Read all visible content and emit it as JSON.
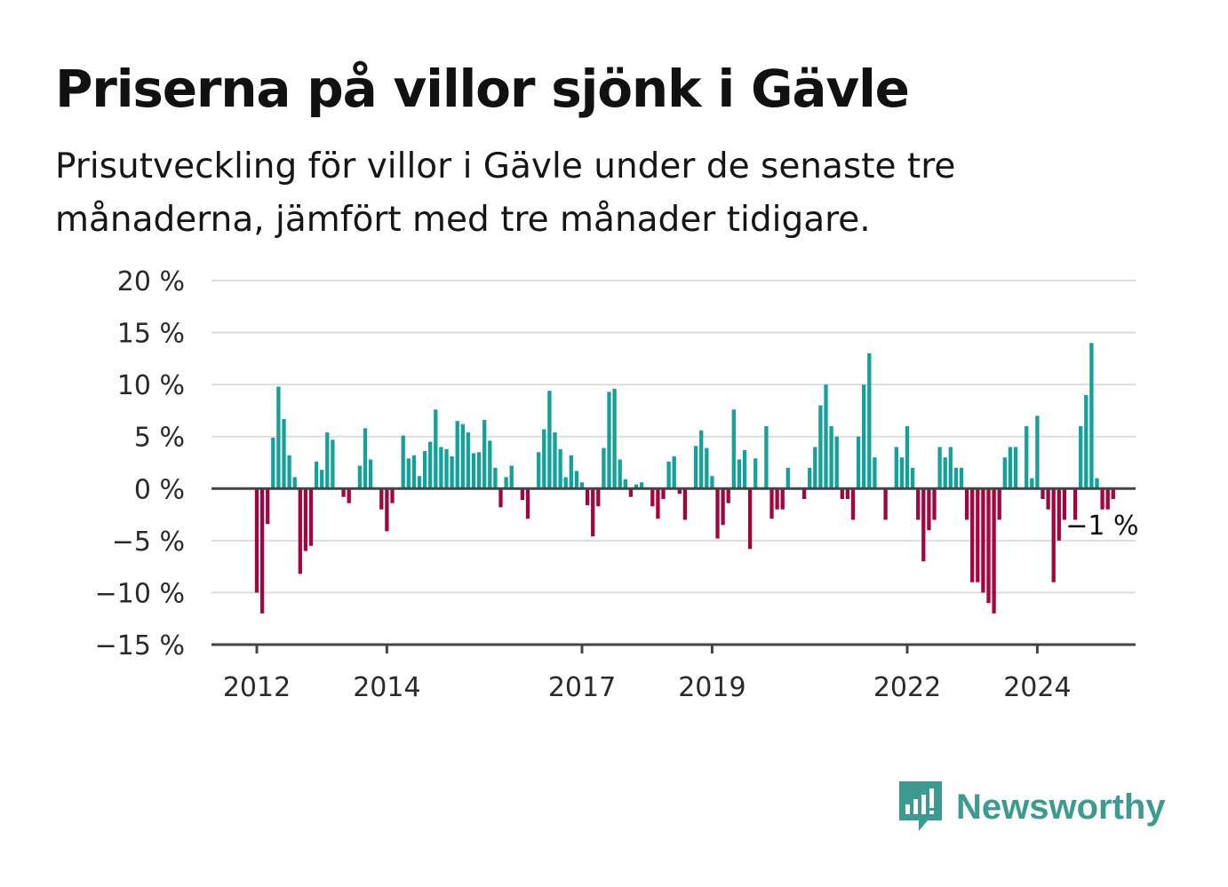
{
  "title": "Priserna på villor sjönk i Gävle",
  "subtitle": "Prisutveckling för villor i Gävle under de senaste tre månaderna, jämfört med tre månader tidigare.",
  "logo": {
    "text": "Newsworthy",
    "icon": "newsworthy-chart-bubble-icon"
  },
  "colors": {
    "positive": "#13a19b",
    "negative": "#a3063f",
    "grid": "#dddddd",
    "axis": "#444444",
    "logo": "#3d9a90"
  },
  "chart_data": {
    "type": "bar",
    "title": "Priserna på villor sjönk i Gävle",
    "xlabel": "",
    "ylabel": "",
    "ylim": [
      -15,
      20
    ],
    "yticks": [
      -15,
      -10,
      -5,
      0,
      5,
      10,
      15,
      20
    ],
    "ytick_labels": [
      "−15 %",
      "−10 %",
      "−5 %",
      "0 %",
      "5 %",
      "10 %",
      "15 %",
      "20 %"
    ],
    "xtick_labels": [
      "2012",
      "2014",
      "2017",
      "2019",
      "2022",
      "2024"
    ],
    "xtick_index": [
      0,
      24,
      60,
      84,
      120,
      144
    ],
    "start_index": -0.5,
    "end_index": 163,
    "grid": true,
    "annotation": {
      "text": "−1 %",
      "index": 154
    },
    "values": [
      -10,
      -12,
      -3.4,
      4.9,
      9.8,
      6.7,
      3.2,
      1.1,
      -8.2,
      -6,
      -5.5,
      2.6,
      1.8,
      5.4,
      4.7,
      0,
      -0.8,
      -1.4,
      0,
      2.2,
      5.8,
      2.8,
      0,
      -2,
      -4.1,
      -1.4,
      0,
      5.1,
      2.9,
      3.2,
      1.2,
      3.6,
      4.5,
      7.6,
      4,
      3.8,
      3.1,
      6.5,
      6.2,
      5.4,
      3.4,
      3.5,
      6.6,
      4.6,
      2,
      -1.8,
      1.1,
      2.2,
      0,
      -1.1,
      -2.9,
      0,
      3.5,
      5.7,
      9.4,
      5.4,
      3.8,
      1.1,
      3.2,
      1.7,
      0.6,
      -1.6,
      -4.6,
      -1.7,
      3.9,
      9.3,
      9.6,
      2.8,
      0.9,
      -0.8,
      0.4,
      0.6,
      0,
      -1.7,
      -2.9,
      -1,
      2.6,
      3.1,
      -0.5,
      -3,
      0,
      4.1,
      5.6,
      3.9,
      1.2,
      -4.8,
      -3.5,
      -1.4,
      7.6,
      2.8,
      3.7,
      -5.8,
      2.9,
      0,
      6,
      -2.9,
      -2,
      -2,
      2,
      0,
      0,
      -1,
      2,
      4,
      8,
      10,
      6,
      5,
      -1,
      -1,
      -3,
      5,
      10,
      13,
      3,
      0,
      -3,
      0,
      4,
      3,
      6,
      2,
      -3,
      -7,
      -4,
      -3,
      4,
      3,
      4,
      2,
      2,
      -3,
      -9,
      -9,
      -10,
      -11,
      -12,
      -3,
      3,
      4,
      4,
      0,
      6,
      1,
      7,
      -1,
      -2,
      -9,
      -5,
      -3,
      0,
      -3,
      6,
      9,
      14,
      1,
      -2,
      -2,
      -1
    ]
  }
}
